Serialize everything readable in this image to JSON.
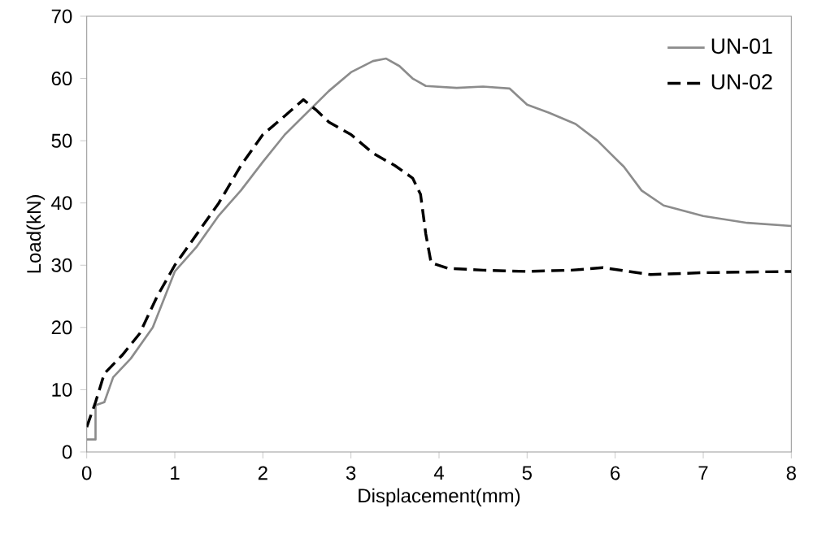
{
  "chart_data": {
    "type": "line",
    "xlabel": "Displacement(mm)",
    "ylabel": "Load(kN)",
    "xlim": [
      0,
      8
    ],
    "ylim": [
      0,
      70
    ],
    "xticks": [
      0,
      1,
      2,
      3,
      4,
      5,
      6,
      7,
      8
    ],
    "yticks": [
      0,
      10,
      20,
      30,
      40,
      50,
      60,
      70
    ],
    "grid": false,
    "legend": "top right",
    "series": [
      {
        "name": "UN-01",
        "color": "#8c8c8c",
        "line_style": "solid",
        "x": [
          0,
          0.1,
          0.1,
          0.2,
          0.3,
          0.5,
          0.75,
          1,
          1.25,
          1.5,
          1.75,
          2,
          2.25,
          2.5,
          2.75,
          3,
          3.25,
          3.4,
          3.55,
          3.7,
          3.85,
          4.2,
          4.5,
          4.8,
          5,
          5.25,
          5.55,
          5.8,
          6.1,
          6.3,
          6.55,
          7,
          7.5,
          8
        ],
        "values": [
          2,
          2,
          7.5,
          8,
          12,
          15,
          20,
          29,
          33,
          38,
          42,
          46.6,
          51,
          54.5,
          58,
          61,
          62.8,
          63.2,
          62,
          60,
          58.8,
          58.5,
          58.7,
          58.4,
          55.8,
          54.5,
          52.7,
          50,
          45.8,
          42,
          39.6,
          37.9,
          36.8,
          36.3
        ]
      },
      {
        "name": "UN-02",
        "color": "#000000",
        "line_style": "dashed",
        "x": [
          0,
          0.1,
          0.2,
          0.4,
          0.6,
          0.8,
          1,
          1.25,
          1.5,
          1.75,
          2,
          2.25,
          2.46,
          2.6,
          2.75,
          3,
          3.25,
          3.5,
          3.7,
          3.79,
          3.85,
          3.91,
          4.1,
          4.5,
          5,
          5.5,
          5.86,
          6.4,
          7,
          8
        ],
        "values": [
          4,
          8,
          12.6,
          15.5,
          19,
          25,
          30,
          35,
          40,
          46,
          51,
          54,
          56.6,
          55,
          53,
          51,
          48,
          46,
          44,
          41.4,
          35,
          30.4,
          29.5,
          29.2,
          29,
          29.2,
          29.6,
          28.5,
          28.8,
          29
        ]
      }
    ]
  }
}
